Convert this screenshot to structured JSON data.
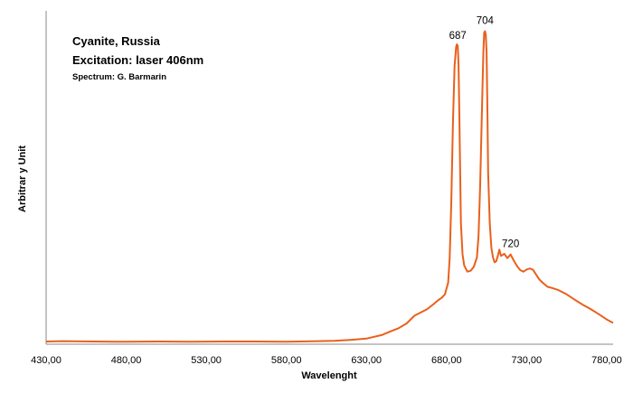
{
  "chart_data": {
    "type": "line",
    "title_lines": [
      "Cyanite, Russia",
      "Excitation: laser 406nm"
    ],
    "credit": "Spectrum: G. Barmarin",
    "xlabel": "Wavelenght",
    "ylabel": "Arbitrar y Unit",
    "x_tick_labels": [
      "430,00",
      "480,00",
      "530,00",
      "580,00",
      "630,00",
      "680,00",
      "730,00",
      "780,00"
    ],
    "x_ticks": [
      430,
      480,
      530,
      580,
      630,
      680,
      730,
      780
    ],
    "xlim": [
      430,
      784
    ],
    "ylim": [
      0,
      100
    ],
    "grid": false,
    "y_tick_labels_visible": false,
    "line_color": "#E9601C",
    "series": [
      {
        "x": [
          430,
          440,
          460,
          480,
          500,
          520,
          540,
          560,
          580,
          600,
          610,
          620,
          630,
          640,
          645,
          650,
          655,
          660,
          665,
          668,
          672,
          675,
          677,
          679,
          681,
          682,
          683,
          684,
          685,
          686,
          686.5,
          687,
          687.5,
          688,
          688.5,
          689,
          690,
          691,
          693,
          695,
          697,
          699,
          700,
          701,
          702,
          703,
          703.5,
          704,
          704.5,
          705,
          705.5,
          706,
          707,
          708,
          709,
          710,
          711,
          712,
          713,
          714,
          716,
          718,
          720,
          722,
          724,
          726,
          728,
          730,
          732,
          734,
          736,
          738,
          740,
          743,
          746,
          750,
          755,
          760,
          765,
          770,
          775,
          780,
          784
        ],
        "y": [
          0.3,
          0.4,
          0.3,
          0.2,
          0.3,
          0.2,
          0.3,
          0.3,
          0.2,
          0.4,
          0.5,
          0.8,
          1.2,
          2.4,
          3.5,
          4.5,
          6.0,
          8.5,
          9.8,
          10.6,
          12.2,
          13.5,
          14.2,
          15.3,
          19,
          27,
          45,
          70,
          88,
          94,
          94.8,
          94.3,
          88,
          72,
          54,
          38,
          28,
          24.5,
          22.5,
          22.8,
          24,
          27,
          34,
          50,
          72,
          92,
          98.5,
          99,
          98,
          92,
          74,
          54,
          38,
          30,
          27,
          25.5,
          25.8,
          27.5,
          29.5,
          27.5,
          28.2,
          26.8,
          28,
          26,
          24.3,
          23,
          22.5,
          23.2,
          23.5,
          23.1,
          21.5,
          20,
          19,
          17.7,
          17.3,
          16.6,
          15.3,
          13.6,
          12,
          10.6,
          9.0,
          7.3,
          6.2
        ]
      }
    ],
    "annotations": [
      {
        "x": 687,
        "text": "687"
      },
      {
        "x": 704,
        "text": "704"
      },
      {
        "x": 720,
        "text": "720"
      }
    ]
  }
}
